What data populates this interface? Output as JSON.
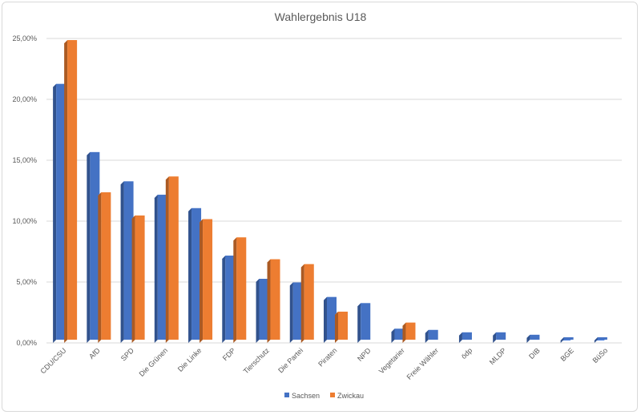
{
  "chart_data": {
    "type": "bar",
    "title": "Wahlergebnis U18",
    "xlabel": "",
    "ylabel": "",
    "ylim": [
      0,
      25
    ],
    "y_ticks": [
      "0,00%",
      "5,00%",
      "10,00%",
      "15,00%",
      "20,00%",
      "25,00%"
    ],
    "y_tick_values": [
      0,
      5,
      10,
      15,
      20,
      25
    ],
    "grid": true,
    "legend_position": "bottom",
    "categories": [
      "CDU/CSU",
      "AfD",
      "SPD",
      "Die Grünen",
      "Die Linke",
      "FDP",
      "Tierschutz",
      "Die Partei",
      "Piraten",
      "NPD",
      "Vegetarier",
      "Freie Wähler",
      "ödp",
      "MLDP",
      "DIB",
      "BGE",
      "BüSo"
    ],
    "series": [
      {
        "name": "Sachsen",
        "color": "#4472c4",
        "values": [
          21.0,
          15.4,
          13.0,
          11.9,
          10.8,
          6.9,
          5.0,
          4.7,
          3.5,
          3.0,
          0.9,
          0.8,
          0.6,
          0.6,
          0.4,
          0.2,
          0.2
        ]
      },
      {
        "name": "Zwickau",
        "color": "#ed7d31",
        "values": [
          24.6,
          12.1,
          10.2,
          13.4,
          9.9,
          8.4,
          6.6,
          6.2,
          2.3,
          null,
          1.4,
          null,
          null,
          null,
          null,
          null,
          null
        ]
      }
    ]
  }
}
